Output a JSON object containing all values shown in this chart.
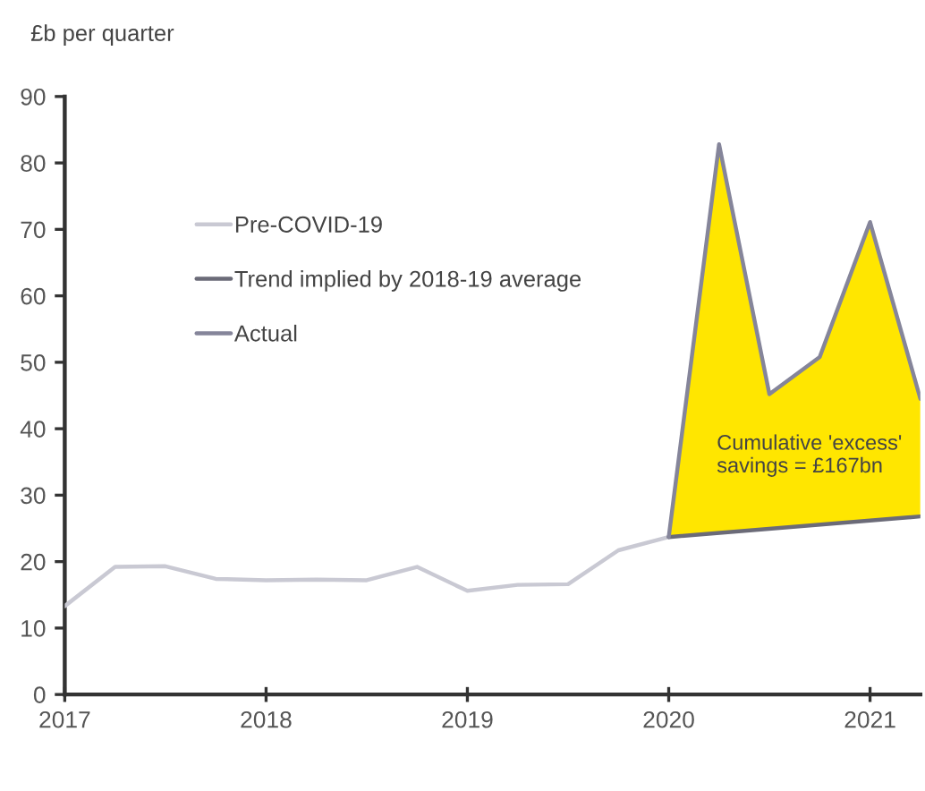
{
  "chart_data": {
    "type": "line",
    "ylabel": "£b per quarter",
    "xlim": [
      2017,
      2021.25
    ],
    "xticks": [
      2017,
      2018,
      2019,
      2020,
      2021
    ],
    "ylim": [
      0,
      90
    ],
    "yticks": [
      0,
      10,
      20,
      30,
      40,
      50,
      60,
      70,
      80,
      90
    ],
    "grid": false,
    "legend": "upper left",
    "line_style": "solid",
    "series": [
      {
        "name": "Pre-COVID-19",
        "color": "#c9c9d3",
        "x": [
          2017,
          2017.25,
          2017.5,
          2017.75,
          2018,
          2018.25,
          2018.5,
          2018.75,
          2019,
          2019.25,
          2019.5,
          2019.75,
          2020
        ],
        "values": [
          13.3,
          19.2,
          19.3,
          17.4,
          17.2,
          17.3,
          17.2,
          19.2,
          15.6,
          16.5,
          16.6,
          21.7,
          23.7
        ]
      },
      {
        "name": "Trend implied by 2018-19 average",
        "color": "#6b6b78",
        "x": [
          2020,
          2021.25
        ],
        "values": [
          23.7,
          26.8
        ]
      },
      {
        "name": "Actual",
        "color": "#85859a",
        "x": [
          2020,
          2020.25,
          2020.5,
          2020.75,
          2021,
          2021.25
        ],
        "values": [
          23.7,
          82.8,
          45.2,
          50.8,
          71.1,
          44.5
        ],
        "lower": [
          23.7,
          24.3,
          24.9,
          25.6,
          26.2,
          26.8
        ],
        "upper": [
          23.7,
          82.8,
          45.2,
          50.8,
          71.1,
          44.5
        ]
      }
    ],
    "annotations": [
      "Cumulative 'excess' savings = £167bn"
    ]
  }
}
